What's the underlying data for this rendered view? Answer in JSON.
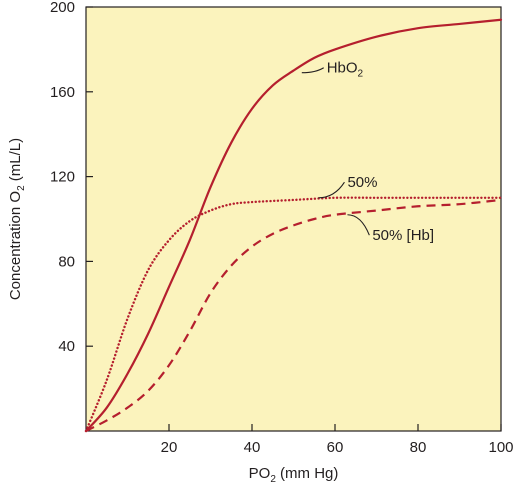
{
  "chart_data": {
    "type": "line",
    "xlabel": "PO2 (mm Hg)",
    "xlabel_parts": {
      "main": "PO",
      "sub": "2",
      "rest": " (mm Hg)"
    },
    "ylabel": "Concentration O2 (mL/L)",
    "ylabel_parts": {
      "main": "Concentration O",
      "sub": "2",
      "rest": " (mL/L)"
    },
    "xlim": [
      0,
      100
    ],
    "ylim": [
      0,
      200
    ],
    "x_ticks": [
      20,
      40,
      60,
      80,
      100
    ],
    "y_ticks": [
      40,
      80,
      120,
      160,
      200
    ],
    "grid": false,
    "background_color": "#fbf3bd",
    "series": [
      {
        "name": "HbO2",
        "name_parts": {
          "main": "HbO",
          "sub": "2"
        },
        "color": "#b51f2e",
        "style": "solid",
        "x": [
          0,
          5,
          10,
          15,
          20,
          25,
          30,
          35,
          40,
          45,
          50,
          55,
          60,
          70,
          80,
          90,
          100
        ],
        "y": [
          0,
          11,
          27,
          46,
          68,
          90,
          115,
          136,
          152,
          163,
          170,
          176,
          180,
          186,
          190,
          192,
          194
        ]
      },
      {
        "name": "50%",
        "color": "#b51f2e",
        "style": "dotted",
        "x": [
          0,
          5,
          10,
          15,
          20,
          25,
          30,
          35,
          40,
          50,
          60,
          70,
          80,
          90,
          100
        ],
        "y": [
          0,
          24,
          53,
          76,
          90,
          99,
          104,
          107,
          108,
          109,
          110,
          110,
          110,
          110,
          110
        ]
      },
      {
        "name": "50% [Hb]",
        "color": "#b51f2e",
        "style": "dashed",
        "x": [
          0,
          5,
          10,
          15,
          20,
          25,
          30,
          35,
          40,
          45,
          50,
          55,
          60,
          70,
          80,
          90,
          100
        ],
        "y": [
          0,
          5,
          11,
          19,
          31,
          47,
          65,
          78,
          87,
          93,
          97,
          100,
          102,
          104,
          106,
          107,
          109
        ]
      }
    ],
    "annotations": [
      {
        "series": "HbO2",
        "text_parts": {
          "main": "HbO",
          "sub": "2"
        },
        "at_x": 52,
        "at_y": 169,
        "label_x": 58,
        "label_y": 169
      },
      {
        "series": "50%",
        "text": "50%",
        "at_x": 56,
        "at_y": 110,
        "label_x": 63,
        "label_y": 115
      },
      {
        "series": "50% [Hb]",
        "text": "50% [Hb]",
        "at_x": 63,
        "at_y": 102,
        "label_x": 69,
        "label_y": 90
      }
    ]
  }
}
